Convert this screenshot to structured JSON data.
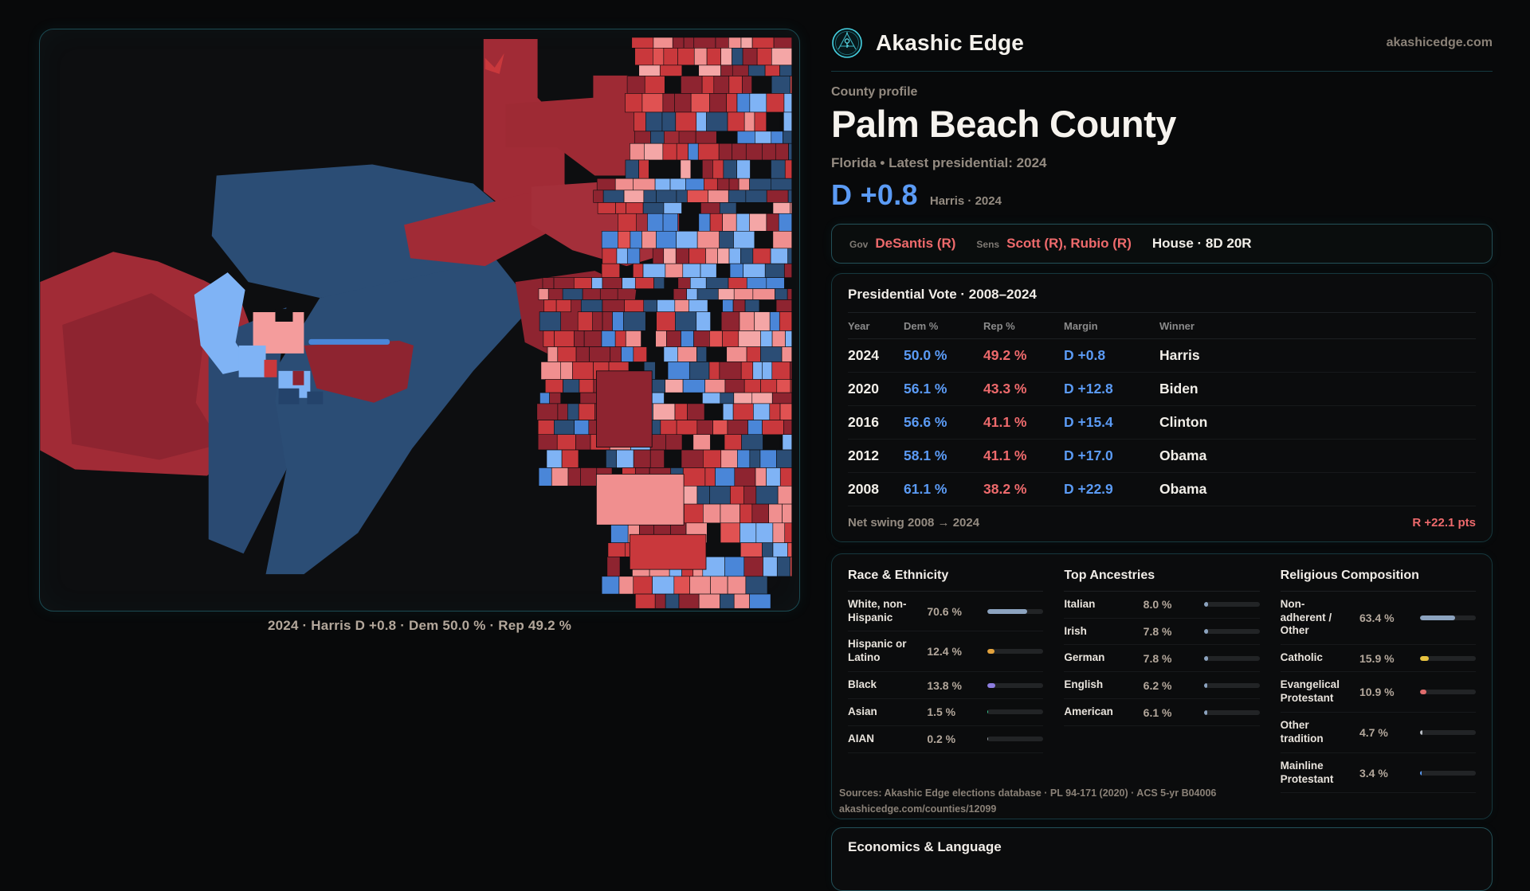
{
  "site": {
    "brand": "Akashic Edge",
    "domain": "akashicedge.com"
  },
  "header": {
    "kicker": "County profile",
    "title": "Palm Beach County",
    "subtitle": "Florida • Latest presidential: 2024",
    "headline_margin": "D +0.8",
    "headline_context": "Harris · 2024"
  },
  "officials": {
    "gov_label": "Gov",
    "gov_value": "DeSantis (R)",
    "sens_label": "Sens",
    "sens_value": "Scott (R), Rubio (R)",
    "house_value": "House · 8D 20R"
  },
  "map": {
    "caption": "2024 · Harris D +0.8 · Dem 50.0 % · Rep 49.2 %",
    "palette": {
      "dark_red": "#8e2430",
      "red": "#c9383c",
      "bright_red": "#e05252",
      "salmon": "#f08f8f",
      "pink": "#f4a6a6",
      "light_blue": "#7fb3f5",
      "mid_blue": "#4a86d8",
      "navy": "#2b4d75",
      "deep_navy": "#203f66"
    }
  },
  "presidential": {
    "title": "Presidential Vote · 2008–2024",
    "columns": {
      "year": "Year",
      "dem": "Dem %",
      "rep": "Rep %",
      "margin": "Margin",
      "winner": "Winner"
    },
    "rows": [
      {
        "year": "2024",
        "dem": "50.0 %",
        "rep": "49.2 %",
        "margin": "D +0.8",
        "winner": "Harris"
      },
      {
        "year": "2020",
        "dem": "56.1 %",
        "rep": "43.3 %",
        "margin": "D +12.8",
        "winner": "Biden"
      },
      {
        "year": "2016",
        "dem": "56.6 %",
        "rep": "41.1 %",
        "margin": "D +15.4",
        "winner": "Clinton"
      },
      {
        "year": "2012",
        "dem": "58.1 %",
        "rep": "41.1 %",
        "margin": "D +17.0",
        "winner": "Obama"
      },
      {
        "year": "2008",
        "dem": "61.1 %",
        "rep": "38.2 %",
        "margin": "D +22.9",
        "winner": "Obama"
      }
    ],
    "net_swing_label": "Net swing 2008 → 2024",
    "net_swing_value": "R +22.1 pts"
  },
  "demographics": {
    "race": {
      "title": "Race & Ethnicity",
      "rows": [
        {
          "label": "White, non-Hispanic",
          "value": "70.6 %",
          "pct": 70.6,
          "color": "#8ca3bf"
        },
        {
          "label": "Hispanic or Latino",
          "value": "12.4 %",
          "pct": 12.4,
          "color": "#e3a23c"
        },
        {
          "label": "Black",
          "value": "13.8 %",
          "pct": 13.8,
          "color": "#8d7de0"
        },
        {
          "label": "Asian",
          "value": "1.5 %",
          "pct": 1.5,
          "color": "#35c98e"
        },
        {
          "label": "AIAN",
          "value": "0.2 %",
          "pct": 0.2,
          "color": "#9aa0a6"
        }
      ]
    },
    "ancestries": {
      "title": "Top Ancestries",
      "rows": [
        {
          "label": "Italian",
          "value": "8.0 %",
          "pct": 8.0,
          "color": "#8ca3bf"
        },
        {
          "label": "Irish",
          "value": "7.8 %",
          "pct": 7.8,
          "color": "#8ca3bf"
        },
        {
          "label": "German",
          "value": "7.8 %",
          "pct": 7.8,
          "color": "#8ca3bf"
        },
        {
          "label": "English",
          "value": "6.2 %",
          "pct": 6.2,
          "color": "#8ca3bf"
        },
        {
          "label": "American",
          "value": "6.1 %",
          "pct": 6.1,
          "color": "#8ca3bf"
        }
      ]
    },
    "religion": {
      "title": "Religious Composition",
      "rows": [
        {
          "label": "Non-adherent / Other",
          "value": "63.4 %",
          "pct": 63.4,
          "color": "#8ca3bf"
        },
        {
          "label": "Catholic",
          "value": "15.9 %",
          "pct": 15.9,
          "color": "#e8c33f"
        },
        {
          "label": "Evangelical Protestant",
          "value": "10.9 %",
          "pct": 10.9,
          "color": "#e06c6c"
        },
        {
          "label": "Other tradition",
          "value": "4.7 %",
          "pct": 4.7,
          "color": "#b9bec4"
        },
        {
          "label": "Mainline Protestant",
          "value": "3.4 %",
          "pct": 3.4,
          "color": "#5b9bf5"
        }
      ]
    }
  },
  "sources": {
    "line1": "Sources: Akashic Edge elections database · PL 94-171 (2020) · ACS 5-yr B04006",
    "line2": "akashicedge.com/counties/12099"
  },
  "economics": {
    "title": "Economics & Language"
  }
}
